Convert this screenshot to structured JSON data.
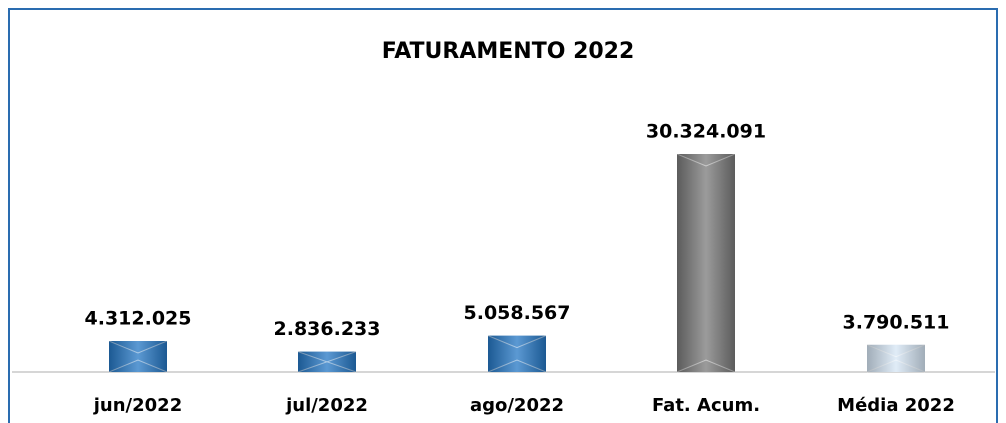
{
  "chart_data": {
    "type": "bar",
    "title": "FATURAMENTO 2022",
    "categories": [
      "jun/2022",
      "jul/2022",
      "ago/2022",
      "Fat. Acum.",
      "Média 2022"
    ],
    "values": [
      4312025,
      2836233,
      5058567,
      30324091,
      3790511
    ],
    "value_labels": [
      "4.312.025",
      "2.836.233",
      "5.058.567",
      "30.324.091",
      "3.790.511"
    ],
    "colors": [
      "#2577c4",
      "#2577c4",
      "#2577c4",
      "#7a7a7a",
      "#d6e6f5"
    ]
  }
}
